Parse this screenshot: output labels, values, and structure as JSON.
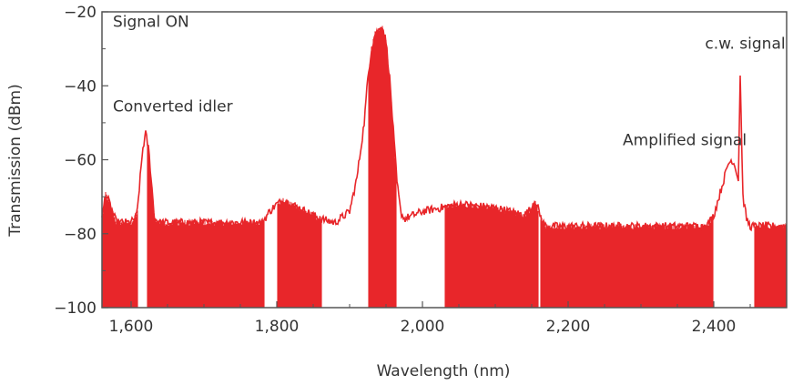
{
  "chart_data": {
    "type": "line",
    "xlabel": "Wavelength (nm)",
    "ylabel": "Transmission (dBm)",
    "xlim": [
      1560,
      2500
    ],
    "ylim": [
      -100,
      -20
    ],
    "x_ticks": [
      1600,
      1800,
      2000,
      2200,
      2400
    ],
    "x_tick_labels": [
      "1,600",
      "1,800",
      "2,000",
      "2,200",
      "2,400"
    ],
    "y_ticks": [
      -20,
      -40,
      -60,
      -80,
      -100
    ],
    "y_tick_labels": [
      "−20",
      "−40",
      "−60",
      "−80",
      "−100"
    ],
    "grid": false,
    "line_color": "#e8262a",
    "annotations": [
      {
        "text": "Signal ON",
        "x": 1575,
        "y": -24
      },
      {
        "text": "Converted idler",
        "x": 1575,
        "y": -47
      },
      {
        "text": "c.w. signal",
        "x": 2388,
        "y": -30
      },
      {
        "text": "Amplified signal",
        "x": 2275,
        "y": -56
      }
    ],
    "envelope": {
      "x": [
        1560,
        1565,
        1580,
        1600,
        1608,
        1612,
        1616,
        1620,
        1624,
        1628,
        1632,
        1640,
        1700,
        1780,
        1790,
        1800,
        1810,
        1820,
        1840,
        1860,
        1880,
        1900,
        1910,
        1920,
        1925,
        1930,
        1935,
        1940,
        1945,
        1950,
        1955,
        1960,
        1965,
        1970,
        1975,
        2000,
        2050,
        2100,
        2120,
        2140,
        2150,
        2155,
        2160,
        2165,
        2170,
        2200,
        2300,
        2390,
        2400,
        2410,
        2420,
        2425,
        2430,
        2434,
        2436,
        2440,
        2445,
        2450,
        2455,
        2460,
        2500
      ],
      "y": [
        -76,
        -69,
        -77,
        -77,
        -75,
        -66,
        -57,
        -53,
        -57,
        -66,
        -76,
        -77,
        -77,
        -77,
        -74,
        -72,
        -71,
        -72,
        -74,
        -76,
        -77,
        -74,
        -65,
        -50,
        -38,
        -30,
        -26,
        -25,
        -24,
        -28,
        -38,
        -52,
        -66,
        -74,
        -76,
        -74,
        -72,
        -73,
        -74,
        -75,
        -73,
        -71,
        -74,
        -77,
        -78,
        -78,
        -78,
        -78,
        -75,
        -68,
        -61,
        -60,
        -62,
        -66,
        -35,
        -70,
        -76,
        -78,
        -78,
        -78,
        -78
      ]
    },
    "noise_floor": -100,
    "signal_gaps": [
      [
        1610,
        1622
      ],
      [
        1783,
        1800
      ],
      [
        1862,
        1925
      ],
      [
        1965,
        2030
      ],
      [
        2160,
        2162
      ],
      [
        2400,
        2455
      ]
    ]
  }
}
